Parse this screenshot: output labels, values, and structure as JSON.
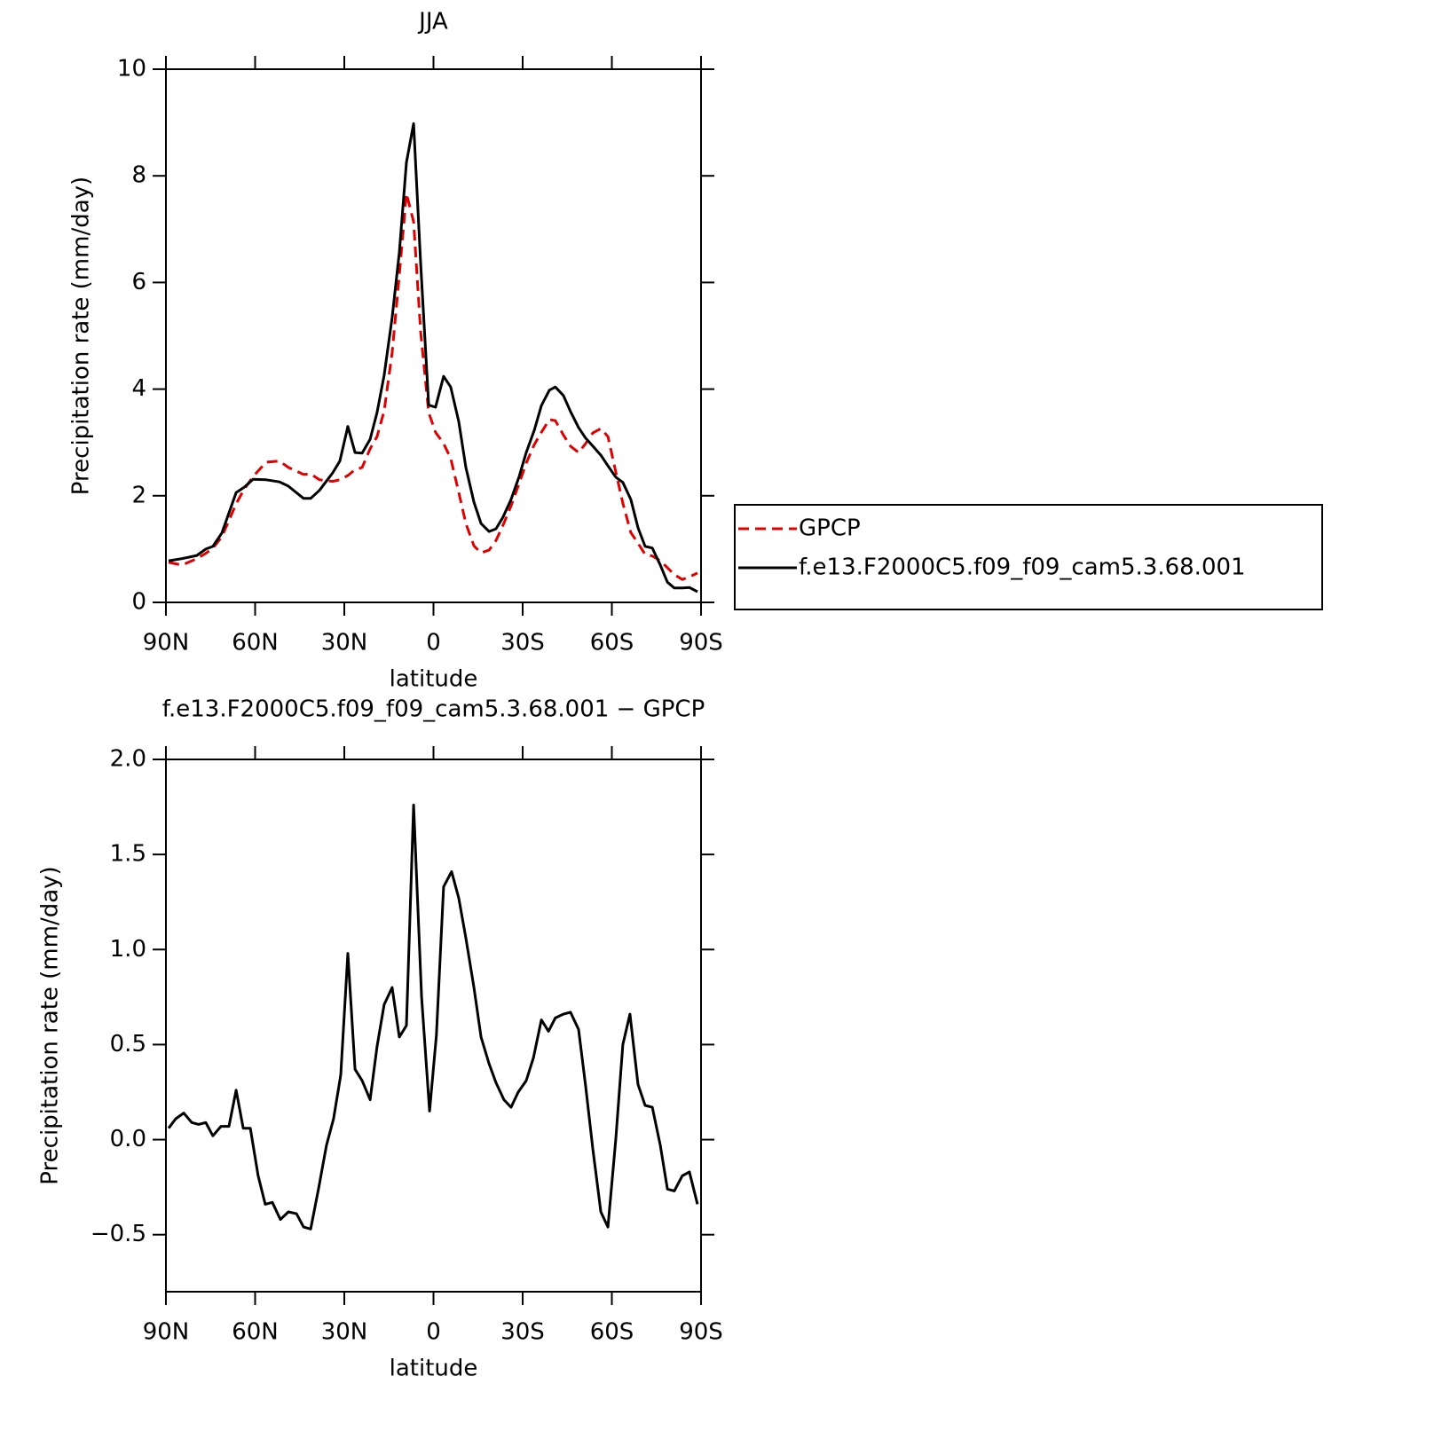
{
  "chart_data": [
    {
      "type": "line",
      "title": "JJA",
      "xlabel": "latitude",
      "ylabel": "Precipitation rate (mm/day)",
      "xlim": [
        90,
        -90
      ],
      "ylim": [
        0,
        10
      ],
      "xticks": [
        {
          "value": 90,
          "label": "90N"
        },
        {
          "value": 60,
          "label": "60N"
        },
        {
          "value": 30,
          "label": "30N"
        },
        0,
        {
          "value": -30,
          "label": "30S"
        },
        {
          "value": -60,
          "label": "60S"
        },
        {
          "value": -90,
          "label": "90S"
        }
      ],
      "yticks": [
        0,
        2,
        4,
        6,
        8,
        10
      ],
      "legend_position": "right",
      "x": [
        89.1,
        84.6,
        79.6,
        76.6,
        74.2,
        71.2,
        66.4,
        63.7,
        60.7,
        56.3,
        51.8,
        48.8,
        43.7,
        41.3,
        38.4,
        33.9,
        31.5,
        28.8,
        26.4,
        24.0,
        21.3,
        19.0,
        16.6,
        13.9,
        11.5,
        9.1,
        6.7,
        4.3,
        1.6,
        -0.7,
        -3.4,
        -5.8,
        -8.5,
        -10.9,
        -13.6,
        -16.0,
        -18.7,
        -21.0,
        -23.4,
        -26.1,
        -28.8,
        -31.2,
        -33.9,
        -36.3,
        -39.0,
        -41.0,
        -43.7,
        -46.1,
        -48.8,
        -51.2,
        -53.6,
        -56.3,
        -58.7,
        -61.3,
        -63.7,
        -66.4,
        -68.8,
        -71.2,
        -73.6,
        -76.3,
        -78.7,
        -81.0,
        -83.7,
        -86.1,
        -88.8
      ],
      "series": [
        {
          "name": "GPCP",
          "color": "#e00000",
          "line_style": "dashed",
          "values": [
            0.75,
            0.7,
            0.82,
            0.92,
            1.02,
            1.23,
            1.85,
            2.12,
            2.36,
            2.63,
            2.65,
            2.53,
            2.4,
            2.41,
            2.3,
            2.27,
            2.3,
            2.38,
            2.49,
            2.53,
            2.88,
            3.11,
            3.59,
            4.68,
            6.14,
            7.67,
            7.14,
            5.06,
            3.56,
            3.19,
            2.98,
            2.7,
            2.06,
            1.48,
            1.06,
            0.93,
            0.98,
            1.16,
            1.45,
            1.81,
            2.23,
            2.61,
            2.96,
            3.19,
            3.43,
            3.41,
            3.14,
            2.93,
            2.81,
            2.98,
            3.18,
            3.26,
            3.11,
            2.45,
            1.86,
            1.31,
            1.11,
            0.9,
            0.87,
            0.78,
            0.65,
            0.52,
            0.43,
            0.48,
            0.55
          ]
        },
        {
          "name": "f.e13.F2000C5.f09_f09_cam5.3.68.001",
          "color": "#000000",
          "line_style": "solid",
          "values": [
            0.78,
            0.82,
            0.88,
            1.0,
            1.05,
            1.3,
            2.06,
            2.16,
            2.31,
            2.3,
            2.26,
            2.18,
            1.95,
            1.95,
            2.1,
            2.43,
            2.65,
            3.3,
            2.81,
            2.8,
            3.06,
            3.56,
            4.26,
            5.34,
            6.56,
            8.25,
            8.98,
            6.34,
            3.7,
            3.66,
            4.24,
            4.04,
            3.39,
            2.53,
            1.88,
            1.48,
            1.33,
            1.38,
            1.6,
            1.93,
            2.36,
            2.81,
            3.23,
            3.69,
            3.98,
            4.04,
            3.88,
            3.58,
            3.28,
            3.08,
            2.93,
            2.76,
            2.56,
            2.35,
            2.25,
            1.93,
            1.4,
            1.05,
            1.02,
            0.7,
            0.38,
            0.27,
            0.27,
            0.28,
            0.2
          ]
        }
      ]
    },
    {
      "type": "line",
      "title": "f.e13.F2000C5.f09_f09_cam5.3.68.001 − GPCP",
      "xlabel": "latitude",
      "ylabel": "Precipitation rate (mm/day)",
      "xlim": [
        90,
        -90
      ],
      "ylim": [
        -0.8,
        2.0
      ],
      "xticks": [
        {
          "value": 90,
          "label": "90N"
        },
        {
          "value": 60,
          "label": "60N"
        },
        {
          "value": 30,
          "label": "30N"
        },
        0,
        {
          "value": -30,
          "label": "30S"
        },
        {
          "value": -60,
          "label": "60S"
        },
        {
          "value": -90,
          "label": "90S"
        }
      ],
      "yticks": [
        {
          "value": -0.5,
          "label": "−0.5"
        },
        {
          "value": 0,
          "label": "0.0"
        },
        0.5,
        {
          "value": 1,
          "label": "1.0"
        },
        1.5,
        {
          "value": 2,
          "label": "2.0"
        }
      ],
      "color": "#000000",
      "x": [
        89.1,
        86.7,
        84.0,
        81.3,
        79.0,
        76.6,
        74.2,
        71.5,
        68.8,
        66.4,
        64.0,
        61.6,
        59.0,
        56.6,
        54.2,
        51.5,
        48.8,
        46.1,
        43.7,
        41.3,
        38.7,
        36.0,
        33.6,
        31.2,
        28.8,
        26.4,
        24.0,
        21.3,
        19.0,
        16.6,
        13.9,
        11.5,
        9.1,
        6.7,
        4.0,
        1.3,
        -1.0,
        -3.4,
        -6.1,
        -8.5,
        -10.9,
        -13.6,
        -16.0,
        -18.7,
        -21.0,
        -23.7,
        -26.1,
        -28.5,
        -31.2,
        -33.6,
        -36.3,
        -38.7,
        -41.0,
        -43.7,
        -46.1,
        -48.8,
        -51.2,
        -53.6,
        -56.3,
        -58.7,
        -61.3,
        -63.7,
        -66.1,
        -68.8,
        -71.2,
        -73.6,
        -76.3,
        -78.7,
        -81.0,
        -83.7,
        -86.1,
        -88.8
      ],
      "values": [
        0.06,
        0.11,
        0.14,
        0.09,
        0.08,
        0.09,
        0.02,
        0.07,
        0.07,
        0.26,
        0.06,
        0.06,
        -0.19,
        -0.34,
        -0.33,
        -0.42,
        -0.38,
        -0.39,
        -0.46,
        -0.47,
        -0.26,
        -0.03,
        0.11,
        0.34,
        0.98,
        0.37,
        0.31,
        0.21,
        0.49,
        0.71,
        0.8,
        0.54,
        0.6,
        1.76,
        0.75,
        0.15,
        0.55,
        1.33,
        1.41,
        1.27,
        1.06,
        0.8,
        0.54,
        0.4,
        0.3,
        0.21,
        0.17,
        0.25,
        0.31,
        0.43,
        0.63,
        0.57,
        0.64,
        0.66,
        0.67,
        0.58,
        0.28,
        -0.05,
        -0.38,
        -0.46,
        0.0,
        0.5,
        0.66,
        0.29,
        0.18,
        0.17,
        -0.03,
        -0.26,
        -0.27,
        -0.19,
        -0.17,
        -0.34
      ]
    }
  ]
}
